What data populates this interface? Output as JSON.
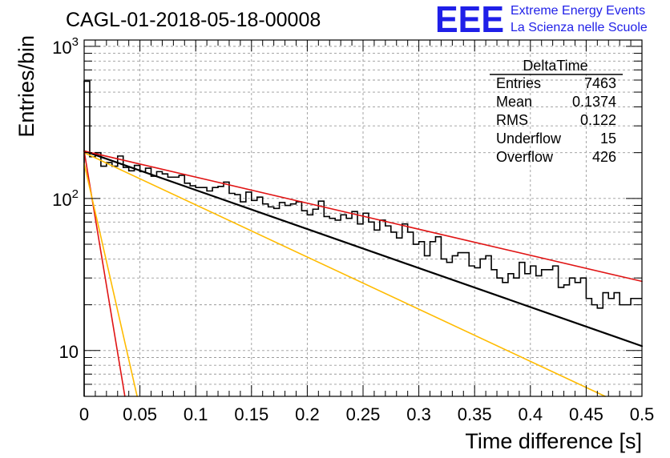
{
  "chart_data": {
    "type": "line",
    "title": "CAGL-01-2018-05-18-00008",
    "xlabel": "Time difference [s]",
    "ylabel": "Entries/bin",
    "xlim": [
      0,
      0.5
    ],
    "ylim": [
      5,
      1100
    ],
    "y_scale": "log",
    "grid": true,
    "x_ticks": [
      {
        "v": 0,
        "label": "0"
      },
      {
        "v": 0.05,
        "label": "0.05"
      },
      {
        "v": 0.1,
        "label": "0.1"
      },
      {
        "v": 0.15,
        "label": "0.15"
      },
      {
        "v": 0.2,
        "label": "0.2"
      },
      {
        "v": 0.25,
        "label": "0.25"
      },
      {
        "v": 0.3,
        "label": "0.3"
      },
      {
        "v": 0.35,
        "label": "0.35"
      },
      {
        "v": 0.4,
        "label": "0.4"
      },
      {
        "v": 0.45,
        "label": "0.45"
      },
      {
        "v": 0.5,
        "label": "0.5"
      }
    ],
    "y_ticks": [
      {
        "v": 10,
        "base": "10",
        "exp": ""
      },
      {
        "v": 100,
        "base": "10",
        "exp": "2"
      },
      {
        "v": 1000,
        "base": "10",
        "exp": "3"
      }
    ],
    "histogram": {
      "bin_width": 0.005,
      "values": [
        590,
        188,
        200,
        163,
        172,
        163,
        190,
        160,
        152,
        165,
        150,
        158,
        140,
        150,
        145,
        138,
        138,
        142,
        126,
        121,
        118,
        118,
        112,
        118,
        120,
        128,
        108,
        106,
        95,
        110,
        97,
        102,
        92,
        88,
        86,
        94,
        90,
        92,
        95,
        83,
        78,
        85,
        96,
        76,
        74,
        72,
        78,
        74,
        82,
        68,
        80,
        70,
        62,
        72,
        66,
        60,
        55,
        68,
        60,
        50,
        52,
        42,
        52,
        56,
        40,
        38,
        42,
        44,
        44,
        36,
        35,
        40,
        42,
        34,
        30,
        28,
        32,
        30,
        38,
        32,
        36,
        31,
        34,
        34,
        36,
        26,
        27,
        30,
        28,
        30,
        22,
        20,
        19,
        24,
        22,
        24,
        20,
        20,
        22,
        22
      ]
    },
    "stats": {
      "title": "DeltaTime",
      "rows": [
        {
          "label": "Entries",
          "value": "7463"
        },
        {
          "label": "Mean",
          "value": "0.1374"
        },
        {
          "label": "RMS",
          "value": "0.122"
        },
        {
          "label": "Underflow",
          "value": "15"
        },
        {
          "label": "Overflow",
          "value": "426"
        }
      ]
    },
    "fit_lines": [
      {
        "color": "#000000",
        "x": [
          0,
          0.5
        ],
        "y": [
          205,
          10.7
        ],
        "width": 2.2
      },
      {
        "color": "#e01414",
        "x": [
          0,
          0.5
        ],
        "y": [
          205,
          28.5
        ],
        "width": 1.6
      },
      {
        "color": "#ffbb00",
        "x": [
          0,
          0.467
        ],
        "y": [
          200,
          5.0
        ],
        "width": 1.6
      },
      {
        "color": "#e01414",
        "x": [
          0,
          0.0365
        ],
        "y": [
          205,
          5.0
        ],
        "width": 1.6
      },
      {
        "color": "#ffbb00",
        "x": [
          0,
          0.0475
        ],
        "y": [
          170,
          5.0
        ],
        "width": 1.6
      }
    ]
  },
  "logo": {
    "letters": "EEE",
    "line1": "Extreme Energy Events",
    "line2": "La Scienza nelle Scuole",
    "color": "#1f1fe8"
  }
}
